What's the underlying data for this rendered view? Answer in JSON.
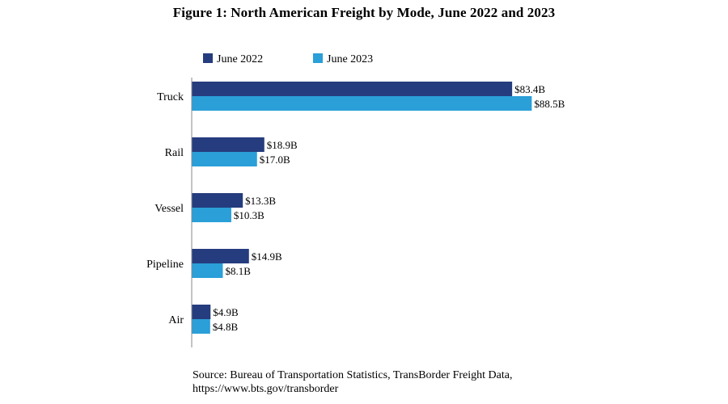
{
  "chart_data": {
    "type": "bar",
    "orientation": "horizontal",
    "title": "Figure 1: North American Freight by Mode, June 2022 and 2023",
    "xlabel": "",
    "ylabel": "",
    "categories": [
      "Truck",
      "Rail",
      "Vessel",
      "Pipeline",
      "Air"
    ],
    "series": [
      {
        "name": "June 2022",
        "color": "#253c7e",
        "values": [
          83.4,
          18.9,
          13.3,
          14.9,
          4.9
        ],
        "labels": [
          "$83.4B",
          "$18.9B",
          "$13.3B",
          "$14.9B",
          "$4.9B"
        ]
      },
      {
        "name": "June 2023",
        "color": "#2a9fd8",
        "values": [
          88.5,
          17.0,
          10.3,
          8.1,
          4.8
        ],
        "labels": [
          "$88.5B",
          "$17.0B",
          "$10.3B",
          "$8.1B",
          "$4.8B"
        ]
      }
    ],
    "xlim": [
      0,
      100
    ],
    "grid": false,
    "legend_position": "top-left"
  },
  "source": {
    "line1": "Source: Bureau of Transportation Statistics, TransBorder Freight Data,",
    "line2": "https://www.bts.gov/transborder"
  }
}
